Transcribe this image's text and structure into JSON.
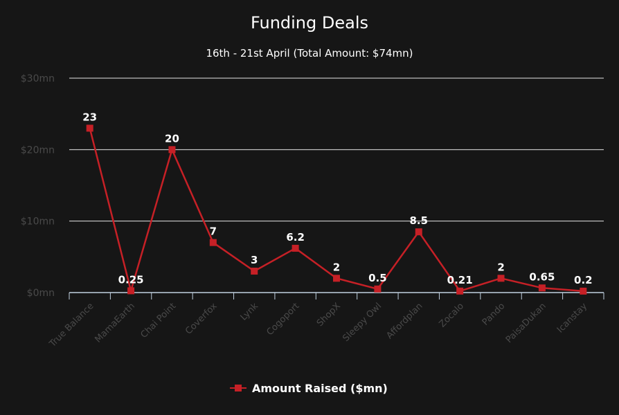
{
  "chart_data": {
    "type": "line",
    "title": "Funding Deals",
    "subtitle": "16th - 21st April (Total Amount: $74mn)",
    "categories": [
      "True Balance",
      "MamaEarth",
      "Chai Point",
      "Coverfox",
      "Lynk",
      "Cogoport",
      "ShopX",
      "Sleepy Owl",
      "Affordplan",
      "Zocalo",
      "Pando",
      "PaisaDukan",
      "Icanstay"
    ],
    "series": [
      {
        "name": "Amount Raised ($mn)",
        "values": [
          23,
          0.25,
          20,
          7,
          3,
          6.2,
          2,
          0.5,
          8.5,
          0.21,
          2,
          0.65,
          0.2
        ],
        "labels": [
          "23",
          "0.25",
          "20",
          "7",
          "3",
          "6.2",
          "2",
          "0.5",
          "8.5",
          "0.21",
          "2",
          "0.65",
          "0.2"
        ]
      }
    ],
    "yticks": [
      {
        "value": 0,
        "label": "$0mn"
      },
      {
        "value": 10,
        "label": "$10mn"
      },
      {
        "value": 20,
        "label": "$20mn"
      },
      {
        "value": 30,
        "label": "$30mn"
      }
    ],
    "ylim": [
      0,
      30
    ],
    "grid": true,
    "legend": "bottom",
    "colors": {
      "series": "#c62026",
      "background": "#161616",
      "text": "#ffffff",
      "ticks": "#4a4a4a",
      "grid": "#e6e6e6",
      "axis": "#c0d0e0"
    }
  }
}
